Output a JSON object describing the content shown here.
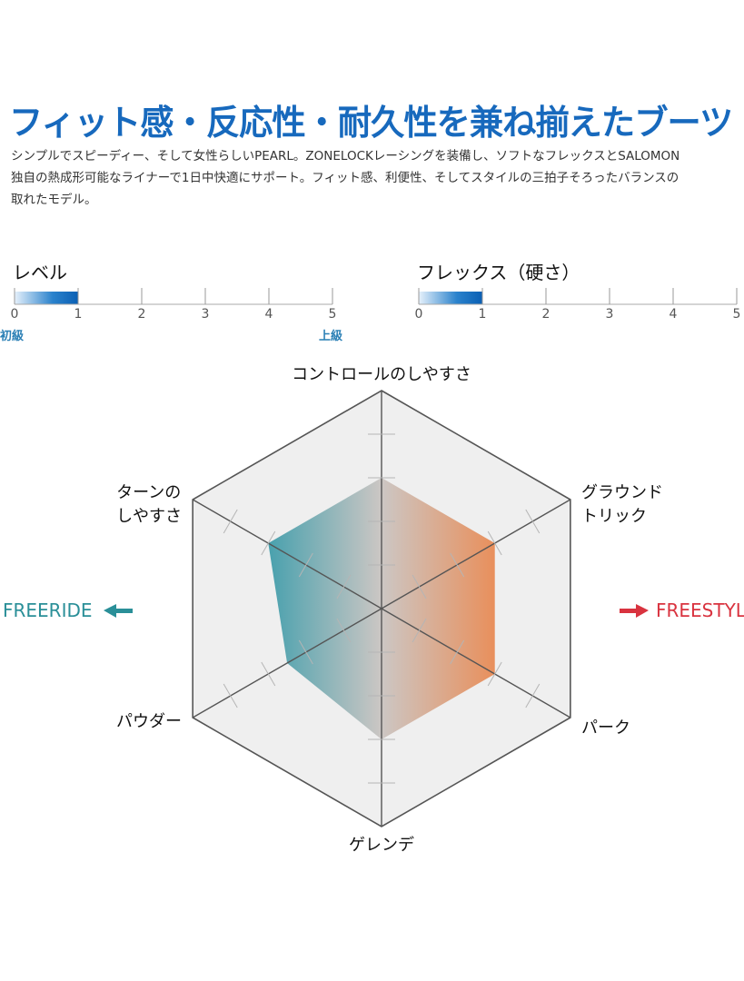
{
  "header": {
    "title": "フィット感・反応性・耐久性を兼ね揃えたブーツ",
    "description": [
      "シンプルでスピーディー、そして女性らしいPEARL。ZONELOCKレーシングを装備し、ソフトなフレックスとSALOMON",
      "独自の熱成形可能なライナーで1日中快適にサポート。フィット感、利便性、そしてスタイルの三拍子そろったバランスの",
      "取れたモデル。"
    ]
  },
  "chart_data": [
    {
      "type": "bar",
      "title": "レベル",
      "value": 1,
      "xlim": [
        0,
        5
      ],
      "ticks": [
        "0",
        "1",
        "2",
        "3",
        "4",
        "5"
      ],
      "min_label": "初級",
      "max_label": "上級",
      "color": "#0a62b8"
    },
    {
      "type": "bar",
      "title": "フレックス（硬さ）",
      "value": 1,
      "xlim": [
        0,
        5
      ],
      "ticks": [
        "0",
        "1",
        "2",
        "3",
        "4",
        "5"
      ],
      "color": "#0a62b8"
    },
    {
      "type": "radar",
      "axes": [
        "コントロールのしやすさ",
        "グラウンド\nトリック",
        "パーク",
        "ゲレンデ",
        "パウダー",
        "ターンの\nしやすさ"
      ],
      "values": [
        3,
        3,
        3,
        3,
        2.5,
        3
      ],
      "range": [
        0,
        5
      ],
      "left_label": "FREERIDE",
      "right_label": "FREESTYLE",
      "left_color": "#2a8f98",
      "right_color": "#d9333f",
      "fill_left": "#3a9aa8",
      "fill_right": "#e8874f"
    }
  ]
}
